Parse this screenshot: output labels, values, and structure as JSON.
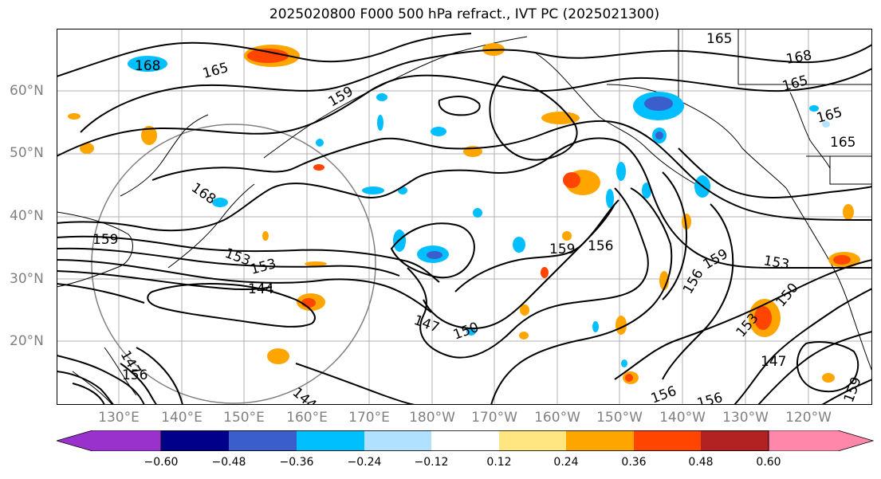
{
  "title": "2025020800 F000 500 hPa refract., IVT PC (2025021300)",
  "latitude_labels": [
    "60°N",
    "50°N",
    "40°N",
    "30°N",
    "20°N"
  ],
  "longitude_labels": [
    "130°E",
    "140°E",
    "150°E",
    "160°E",
    "170°E",
    "180°W",
    "170°W",
    "160°W",
    "150°W",
    "140°W",
    "130°W",
    "120°W"
  ],
  "colorbar": {
    "tick_labels": [
      "−0.60",
      "−0.48",
      "−0.36",
      "−0.24",
      "−0.12",
      "0.12",
      "0.24",
      "0.36",
      "0.48",
      "0.60"
    ],
    "colors": [
      "#9932cc",
      "#00008b",
      "#3a5fcd",
      "#00bfff",
      "#b0e2ff",
      "#ffffff",
      "#ffe680",
      "#ffa500",
      "#ff4500",
      "#b22222",
      "#ff88aa"
    ]
  },
  "contour_labels": [
    "168",
    "165",
    "159",
    "165",
    "168",
    "165",
    "165",
    "165",
    "168",
    "159",
    "153",
    "153",
    "144",
    "159",
    "156",
    "159",
    "156",
    "153",
    "147",
    "150",
    "147",
    "144",
    "156",
    "150",
    "153",
    "147",
    "156",
    "156",
    "159",
    "147"
  ]
}
